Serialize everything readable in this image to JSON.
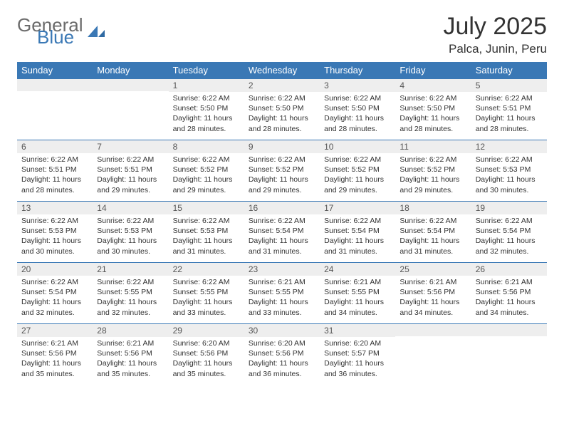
{
  "logo": {
    "general": "General",
    "blue": "Blue"
  },
  "title": "July 2025",
  "location": "Palca, Junin, Peru",
  "colors": {
    "header_bg": "#3a78b5",
    "header_text": "#ffffff",
    "daynum_bg": "#eeeeee",
    "border": "#3a78b5",
    "text": "#333333",
    "logo_gray": "#6b6b6b",
    "logo_blue": "#3a78b5"
  },
  "weekdays": [
    "Sunday",
    "Monday",
    "Tuesday",
    "Wednesday",
    "Thursday",
    "Friday",
    "Saturday"
  ],
  "weeks": [
    [
      null,
      null,
      {
        "n": "1",
        "sr": "6:22 AM",
        "ss": "5:50 PM",
        "dl": "11 hours and 28 minutes."
      },
      {
        "n": "2",
        "sr": "6:22 AM",
        "ss": "5:50 PM",
        "dl": "11 hours and 28 minutes."
      },
      {
        "n": "3",
        "sr": "6:22 AM",
        "ss": "5:50 PM",
        "dl": "11 hours and 28 minutes."
      },
      {
        "n": "4",
        "sr": "6:22 AM",
        "ss": "5:50 PM",
        "dl": "11 hours and 28 minutes."
      },
      {
        "n": "5",
        "sr": "6:22 AM",
        "ss": "5:51 PM",
        "dl": "11 hours and 28 minutes."
      }
    ],
    [
      {
        "n": "6",
        "sr": "6:22 AM",
        "ss": "5:51 PM",
        "dl": "11 hours and 28 minutes."
      },
      {
        "n": "7",
        "sr": "6:22 AM",
        "ss": "5:51 PM",
        "dl": "11 hours and 29 minutes."
      },
      {
        "n": "8",
        "sr": "6:22 AM",
        "ss": "5:52 PM",
        "dl": "11 hours and 29 minutes."
      },
      {
        "n": "9",
        "sr": "6:22 AM",
        "ss": "5:52 PM",
        "dl": "11 hours and 29 minutes."
      },
      {
        "n": "10",
        "sr": "6:22 AM",
        "ss": "5:52 PM",
        "dl": "11 hours and 29 minutes."
      },
      {
        "n": "11",
        "sr": "6:22 AM",
        "ss": "5:52 PM",
        "dl": "11 hours and 29 minutes."
      },
      {
        "n": "12",
        "sr": "6:22 AM",
        "ss": "5:53 PM",
        "dl": "11 hours and 30 minutes."
      }
    ],
    [
      {
        "n": "13",
        "sr": "6:22 AM",
        "ss": "5:53 PM",
        "dl": "11 hours and 30 minutes."
      },
      {
        "n": "14",
        "sr": "6:22 AM",
        "ss": "5:53 PM",
        "dl": "11 hours and 30 minutes."
      },
      {
        "n": "15",
        "sr": "6:22 AM",
        "ss": "5:53 PM",
        "dl": "11 hours and 31 minutes."
      },
      {
        "n": "16",
        "sr": "6:22 AM",
        "ss": "5:54 PM",
        "dl": "11 hours and 31 minutes."
      },
      {
        "n": "17",
        "sr": "6:22 AM",
        "ss": "5:54 PM",
        "dl": "11 hours and 31 minutes."
      },
      {
        "n": "18",
        "sr": "6:22 AM",
        "ss": "5:54 PM",
        "dl": "11 hours and 31 minutes."
      },
      {
        "n": "19",
        "sr": "6:22 AM",
        "ss": "5:54 PM",
        "dl": "11 hours and 32 minutes."
      }
    ],
    [
      {
        "n": "20",
        "sr": "6:22 AM",
        "ss": "5:54 PM",
        "dl": "11 hours and 32 minutes."
      },
      {
        "n": "21",
        "sr": "6:22 AM",
        "ss": "5:55 PM",
        "dl": "11 hours and 32 minutes."
      },
      {
        "n": "22",
        "sr": "6:22 AM",
        "ss": "5:55 PM",
        "dl": "11 hours and 33 minutes."
      },
      {
        "n": "23",
        "sr": "6:21 AM",
        "ss": "5:55 PM",
        "dl": "11 hours and 33 minutes."
      },
      {
        "n": "24",
        "sr": "6:21 AM",
        "ss": "5:55 PM",
        "dl": "11 hours and 34 minutes."
      },
      {
        "n": "25",
        "sr": "6:21 AM",
        "ss": "5:56 PM",
        "dl": "11 hours and 34 minutes."
      },
      {
        "n": "26",
        "sr": "6:21 AM",
        "ss": "5:56 PM",
        "dl": "11 hours and 34 minutes."
      }
    ],
    [
      {
        "n": "27",
        "sr": "6:21 AM",
        "ss": "5:56 PM",
        "dl": "11 hours and 35 minutes."
      },
      {
        "n": "28",
        "sr": "6:21 AM",
        "ss": "5:56 PM",
        "dl": "11 hours and 35 minutes."
      },
      {
        "n": "29",
        "sr": "6:20 AM",
        "ss": "5:56 PM",
        "dl": "11 hours and 35 minutes."
      },
      {
        "n": "30",
        "sr": "6:20 AM",
        "ss": "5:56 PM",
        "dl": "11 hours and 36 minutes."
      },
      {
        "n": "31",
        "sr": "6:20 AM",
        "ss": "5:57 PM",
        "dl": "11 hours and 36 minutes."
      },
      null,
      null
    ]
  ],
  "labels": {
    "sunrise": "Sunrise:",
    "sunset": "Sunset:",
    "daylight": "Daylight:"
  }
}
